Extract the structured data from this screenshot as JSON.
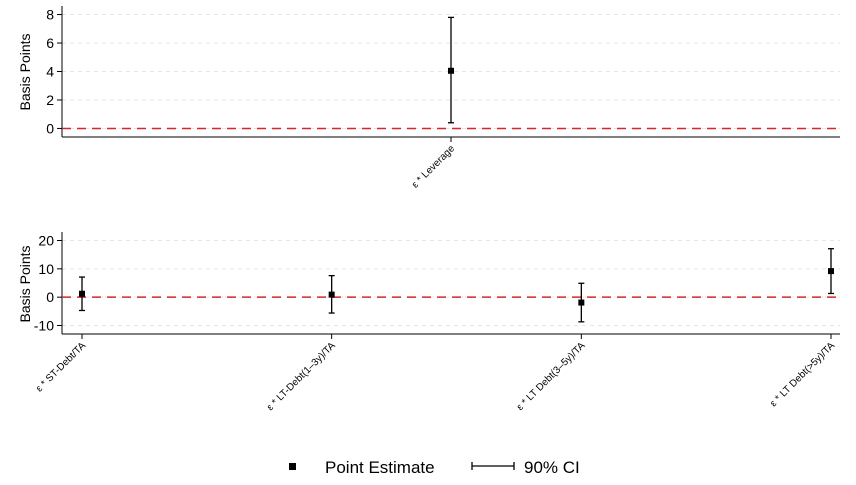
{
  "chart_data": [
    {
      "type": "errorbar",
      "ylabel": "Basis Points",
      "ylim": [
        -0.6,
        8.6
      ],
      "yticks": [
        0,
        2,
        4,
        6,
        8
      ],
      "grid": true,
      "categories": [
        "ε * Leverage"
      ],
      "points": [
        {
          "category": "ε * Leverage",
          "estimate": 4.05,
          "ci_low": 0.4,
          "ci_high": 7.8
        }
      ],
      "reference_line": {
        "y": 0,
        "color": "#d62728",
        "style": "dashed"
      }
    },
    {
      "type": "errorbar",
      "ylabel": "Basis Points",
      "ylim": [
        -13,
        23
      ],
      "yticks": [
        -10,
        0,
        10,
        20
      ],
      "grid": true,
      "categories": [
        "ε * ST-Debt/TA",
        "ε * LT-Debt(1–3y)/TA",
        "ε * LT Debt(3–5y)/TA",
        "ε * LT Debt(>5y)/TA"
      ],
      "points": [
        {
          "category": "ε * ST-Debt/TA",
          "estimate": 1.2,
          "ci_low": -4.7,
          "ci_high": 7.1
        },
        {
          "category": "ε * LT-Debt(1–3y)/TA",
          "estimate": 0.9,
          "ci_low": -5.6,
          "ci_high": 7.6
        },
        {
          "category": "ε * LT Debt(3–5y)/TA",
          "estimate": -1.9,
          "ci_low": -8.7,
          "ci_high": 4.9
        },
        {
          "category": "ε * LT Debt(>5y)/TA",
          "estimate": 9.2,
          "ci_low": 1.3,
          "ci_high": 17.1
        }
      ],
      "reference_line": {
        "y": 0,
        "color": "#d62728",
        "style": "dashed"
      }
    }
  ],
  "legend": {
    "position": "bottom-center",
    "items": [
      {
        "label": "Point Estimate",
        "marker": "square"
      },
      {
        "label": "90% CI",
        "marker": "capped-line"
      }
    ]
  },
  "colors": {
    "estimate": "#000000",
    "reference": "#d62728",
    "grid": "#e6e6e6"
  }
}
